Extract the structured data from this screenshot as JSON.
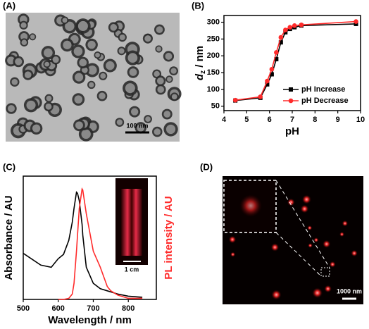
{
  "panels": [
    {
      "label": "(A)",
      "scale_bar": "100 nm"
    },
    {
      "label": "(B)"
    },
    {
      "label": "(C)",
      "scale_bar": "1 cm"
    },
    {
      "label": "(D)",
      "scale_bar": "1000 nm"
    }
  ],
  "chart_data": [
    {
      "type": "line",
      "x_label": "pH",
      "y_label": {
        "symbol": "d",
        "subscript": "z",
        "unit": " / nm"
      },
      "xlim": [
        4,
        10
      ],
      "xticks": [
        4,
        5,
        6,
        7,
        8,
        9,
        10
      ],
      "ylim": [
        37,
        320
      ],
      "yticks": [
        50,
        100,
        150,
        200,
        250,
        300
      ],
      "legend": "lower right",
      "x": [
        4.5,
        5.6,
        5.9,
        6.1,
        6.3,
        6.5,
        6.7,
        6.9,
        7.1,
        7.4,
        9.8
      ],
      "series": [
        {
          "name": "pH Increase",
          "color": "#000000",
          "marker": "square",
          "values": [
            67,
            75,
            115,
            145,
            190,
            240,
            270,
            280,
            285,
            290,
            295
          ]
        },
        {
          "name": "pH Decrease",
          "color": "#ff2b2b",
          "marker": "circle",
          "values": [
            68,
            78,
            125,
            160,
            210,
            255,
            277,
            285,
            290,
            292,
            302
          ]
        }
      ]
    },
    {
      "type": "line",
      "x_label": "Wavelength / nm",
      "y_label": "Absorbance / AU",
      "y2_label": "PL intensity / AU",
      "xlim": [
        500,
        880
      ],
      "xticks": [
        500,
        600,
        700,
        800
      ],
      "ylim": [
        0,
        1.15
      ],
      "y2lim": [
        0,
        1.15
      ],
      "x": [
        500,
        550,
        580,
        600,
        615,
        630,
        640,
        645,
        652,
        655,
        660,
        668,
        670,
        680,
        700,
        720,
        740,
        750,
        770,
        800,
        840
      ],
      "series": [
        {
          "color": "#000000",
          "values": [
            0.43,
            0.32,
            0.3,
            0.38,
            0.42,
            0.55,
            0.72,
            0.85,
            1.0,
            0.99,
            0.92,
            0.7,
            0.6,
            0.3,
            0.15,
            0.1,
            0.08,
            0.07,
            0.05,
            0.03,
            0.02
          ]
        },
        {
          "color": "#ff2b2b",
          "axis": "y2",
          "values": [
            null,
            null,
            null,
            0.0,
            0.0,
            0.01,
            0.05,
            0.15,
            0.45,
            0.6,
            0.85,
            1.03,
            1.02,
            0.8,
            0.45,
            0.3,
            0.12,
            0.08,
            0.04,
            0.01,
            0.01
          ]
        }
      ]
    }
  ]
}
